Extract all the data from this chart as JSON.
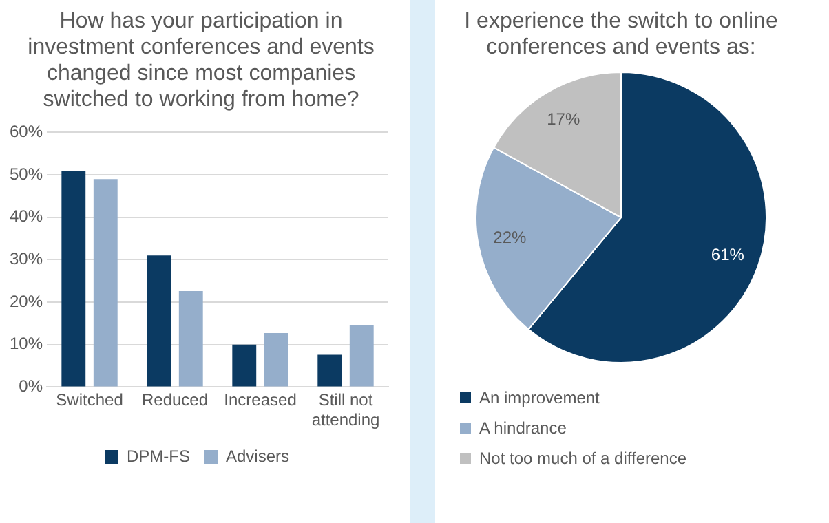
{
  "chart_data": [
    {
      "type": "bar",
      "title": "How has your participation in investment conferences and events changed since most companies switched to working from home?",
      "categories": [
        "Switched",
        "Reduced",
        "Increased",
        "Still not attending"
      ],
      "series": [
        {
          "name": "DPM-FS",
          "color": "#0b3a62",
          "values": [
            51,
            31,
            10,
            7.6
          ]
        },
        {
          "name": "Advisers",
          "color": "#95aecb",
          "values": [
            49,
            22.6,
            12.7,
            14.6
          ]
        }
      ],
      "ylim": [
        0,
        60
      ],
      "yticks": [
        {
          "value": 0,
          "label": "0%"
        },
        {
          "value": 10,
          "label": "10%"
        },
        {
          "value": 20,
          "label": "20%"
        },
        {
          "value": 30,
          "label": "30%"
        },
        {
          "value": 40,
          "label": "40%"
        },
        {
          "value": 50,
          "label": "50%"
        },
        {
          "value": 60,
          "label": "60%"
        }
      ],
      "grid": "y",
      "legend": "bottom"
    },
    {
      "type": "pie",
      "title": "I experience the switch to online conferences and events as:",
      "categories": [
        "An improvement",
        "A hindrance",
        "Not too much of a difference"
      ],
      "values": [
        61,
        22,
        17
      ],
      "colors": [
        "#0b3a62",
        "#95aecb",
        "#c0c0c0"
      ],
      "value_labels": [
        "61%",
        "22%",
        "17%"
      ],
      "legend": "bottom"
    }
  ]
}
